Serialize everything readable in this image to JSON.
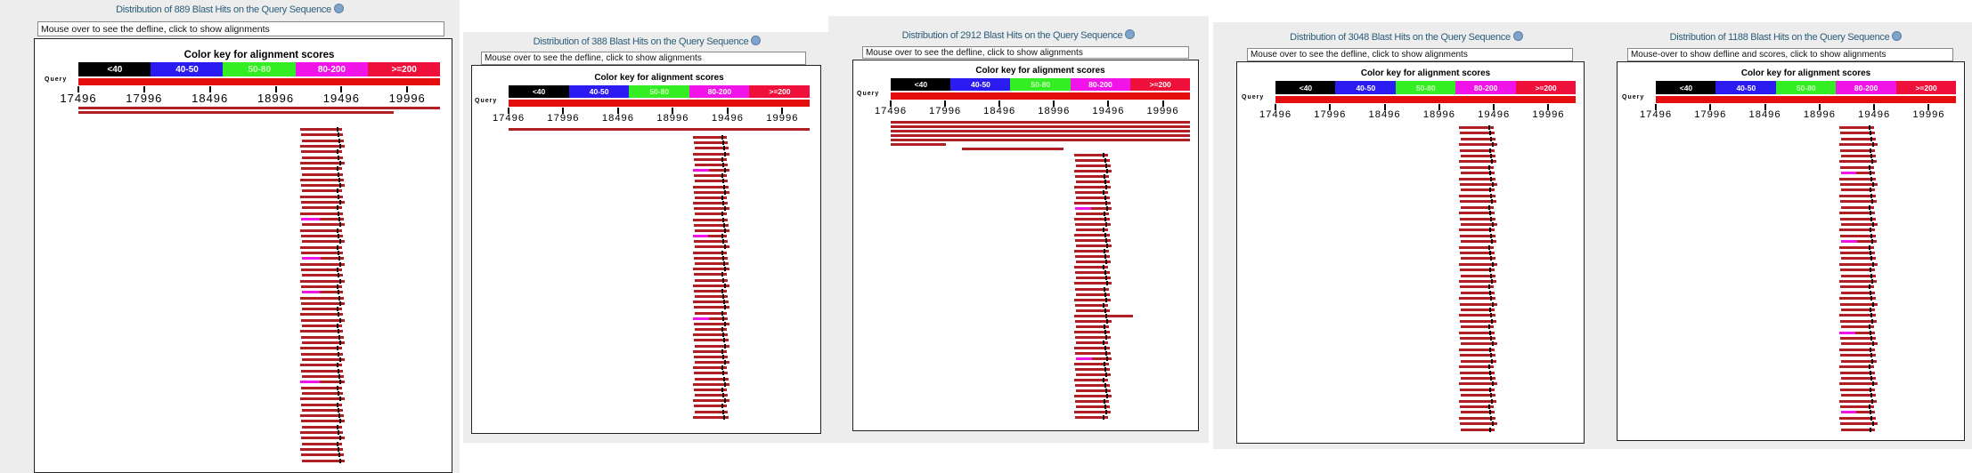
{
  "color_key": {
    "title": "Color key for alignment scores",
    "ranges": [
      {
        "label": "<40",
        "color": "#000000"
      },
      {
        "label": "40-50",
        "color": "#2b1bf0"
      },
      {
        "label": "50-80",
        "color": "#33ee22"
      },
      {
        "label": "80-200",
        "color": "#f014e8"
      },
      {
        "label": ">=200",
        "color": "#ee0f3a"
      }
    ]
  },
  "query_label": "Query",
  "query_color": "#e40e0e",
  "hit_color": "#b01f24",
  "axis": {
    "ticks": [
      "17496",
      "17996",
      "18496",
      "18996",
      "19496",
      "19996"
    ],
    "start": 17496,
    "end": 20245
  },
  "panels": [
    {
      "title": "Distribution of 889 Blast Hits on the Query Sequence",
      "defline": "Mouse over to see the defline, click to show alignments",
      "long_hits": [
        [
          17496,
          20245
        ],
        [
          17496,
          19890
        ]
      ],
      "column": {
        "start": 19180,
        "end": 19510,
        "rows": 60,
        "magenta_rows": [
          16,
          23,
          29,
          45
        ]
      }
    },
    {
      "title": "Distribution of 388 Blast Hits on the Query Sequence",
      "defline": "Mouse over to see the defline, click to show alignments",
      "long_hits": [
        [
          17496,
          20245
        ]
      ],
      "column": {
        "start": 19180,
        "end": 19500,
        "rows": 52,
        "magenta_rows": [
          6,
          18,
          33
        ]
      }
    },
    {
      "title": "Distribution of 2912 Blast Hits on the Query Sequence",
      "defline": "Mouse over to see the defline, click to show alignments",
      "long_hits": [
        [
          17496,
          20245
        ],
        [
          17496,
          20245
        ],
        [
          17496,
          20245
        ],
        [
          17496,
          20245
        ],
        [
          17496,
          20245
        ],
        [
          17496,
          18000
        ],
        [
          18150,
          19080
        ]
      ],
      "column": {
        "start": 19180,
        "end": 19510,
        "rows": 50,
        "magenta_rows": [
          10,
          38
        ]
      },
      "extra_hits": [
        [
          19510,
          19720
        ]
      ]
    },
    {
      "title": "Distribution of 3048 Blast Hits on the Query Sequence",
      "defline": "Mouse over to see the defline, click to show alignments",
      "long_hits": [],
      "column": {
        "start": 19180,
        "end": 19510,
        "rows": 54,
        "magenta_rows": []
      }
    },
    {
      "title": "Distribution of 1188 Blast Hits on the Query Sequence",
      "defline": "Mouse-over to show defline and scores, click to show alignments",
      "long_hits": [],
      "column": {
        "start": 19180,
        "end": 19510,
        "rows": 54,
        "magenta_rows": [
          8,
          20,
          36,
          50
        ]
      }
    }
  ]
}
